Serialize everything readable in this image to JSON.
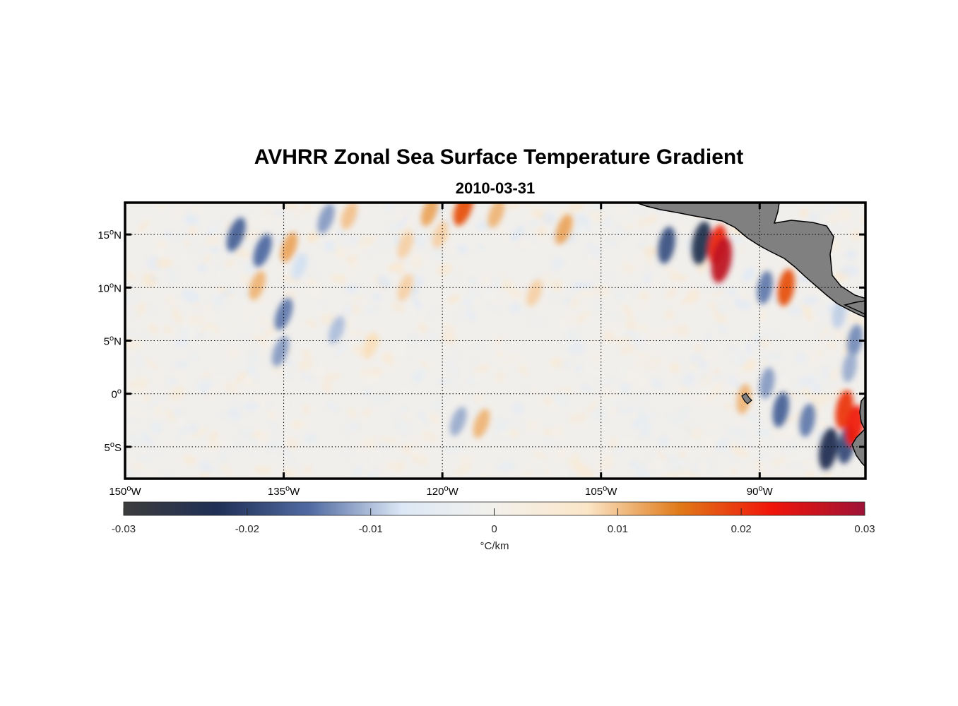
{
  "title": "AVHRR Zonal Sea Surface Temperature Gradient",
  "subtitle": "2010-03-31",
  "map": {
    "lon_range": [
      -150,
      -80
    ],
    "lat_range": [
      -8,
      18
    ],
    "lon_ticks": [
      {
        "value": -150,
        "num": "150",
        "hemi": "W"
      },
      {
        "value": -135,
        "num": "135",
        "hemi": "W"
      },
      {
        "value": -120,
        "num": "120",
        "hemi": "W"
      },
      {
        "value": -105,
        "num": "105",
        "hemi": "W"
      },
      {
        "value": -90,
        "num": "90",
        "hemi": "W"
      }
    ],
    "lat_ticks": [
      {
        "value": 15,
        "num": "15",
        "hemi": "N"
      },
      {
        "value": 10,
        "num": "10",
        "hemi": "N"
      },
      {
        "value": 5,
        "num": "5",
        "hemi": "N"
      },
      {
        "value": 0,
        "num": "0",
        "hemi": ""
      },
      {
        "value": -5,
        "num": "5",
        "hemi": "S"
      }
    ],
    "degree_symbol": "o",
    "grid": "dotted",
    "land_color": "#808080",
    "ocean_background": "#f1efec"
  },
  "colorbar": {
    "min": -0.03,
    "max": 0.03,
    "ticks": [
      "-0.03",
      "-0.02",
      "-0.01",
      "0",
      "0.01",
      "0.02",
      "0.03"
    ],
    "tick_values": [
      -0.03,
      -0.02,
      -0.01,
      0,
      0.01,
      0.02,
      0.03
    ],
    "unit_label": "°C/km",
    "colors": [
      "#3c3c3c",
      "#1f2f55",
      "#506aa1",
      "#dce8f6",
      "#f3f1ec",
      "#fbe6c8",
      "#e07a18",
      "#f0140a",
      "#9e1236"
    ]
  },
  "features": [
    {
      "lon": -139.5,
      "lat": 15.0,
      "value": -0.016
    },
    {
      "lon": -137.0,
      "lat": 13.5,
      "value": -0.015
    },
    {
      "lon": -134.5,
      "lat": 13.8,
      "value": 0.012
    },
    {
      "lon": -137.5,
      "lat": 10.2,
      "value": 0.011
    },
    {
      "lon": -135.0,
      "lat": 7.5,
      "value": -0.014
    },
    {
      "lon": -133.5,
      "lat": 12.0,
      "value": -0.008
    },
    {
      "lon": -135.3,
      "lat": 4.0,
      "value": -0.012
    },
    {
      "lon": -131.0,
      "lat": 16.5,
      "value": -0.012
    },
    {
      "lon": -128.8,
      "lat": 16.8,
      "value": 0.01
    },
    {
      "lon": -121.2,
      "lat": 17.2,
      "value": 0.012
    },
    {
      "lon": -118.0,
      "lat": 17.5,
      "value": 0.018
    },
    {
      "lon": -114.9,
      "lat": 17.0,
      "value": 0.011
    },
    {
      "lon": -108.5,
      "lat": 15.5,
      "value": 0.012
    },
    {
      "lon": -123.5,
      "lat": 14.0,
      "value": 0.009
    },
    {
      "lon": -120.2,
      "lat": 15.0,
      "value": 0.009
    },
    {
      "lon": -123.5,
      "lat": 10.0,
      "value": 0.009
    },
    {
      "lon": -111.3,
      "lat": 9.5,
      "value": 0.009
    },
    {
      "lon": -130.0,
      "lat": 6.0,
      "value": -0.01
    },
    {
      "lon": -126.8,
      "lat": 4.5,
      "value": 0.008
    },
    {
      "lon": -116.3,
      "lat": -2.8,
      "value": 0.011
    },
    {
      "lon": -118.5,
      "lat": -2.6,
      "value": -0.011
    },
    {
      "lon": -98.8,
      "lat": 14.0,
      "value": -0.018
    },
    {
      "lon": -95.5,
      "lat": 14.2,
      "value": -0.024
    },
    {
      "lon": -94.0,
      "lat": 14.0,
      "value": 0.021
    },
    {
      "lon": -93.6,
      "lat": 12.6,
      "value": 0.027
    },
    {
      "lon": -89.5,
      "lat": 10.0,
      "value": -0.014
    },
    {
      "lon": -87.5,
      "lat": 10.0,
      "value": 0.018
    },
    {
      "lon": -89.3,
      "lat": 1.0,
      "value": -0.012
    },
    {
      "lon": -91.5,
      "lat": -0.5,
      "value": 0.011
    },
    {
      "lon": -88.0,
      "lat": -1.5,
      "value": -0.016
    },
    {
      "lon": -85.5,
      "lat": -2.5,
      "value": -0.014
    },
    {
      "lon": -83.5,
      "lat": -5.2,
      "value": -0.023
    },
    {
      "lon": -81.8,
      "lat": -4.8,
      "value": -0.019
    },
    {
      "lon": -82.0,
      "lat": -1.5,
      "value": 0.02
    },
    {
      "lon": -81.0,
      "lat": -3.0,
      "value": 0.022
    },
    {
      "lon": -81.0,
      "lat": 5.0,
      "value": -0.013
    },
    {
      "lon": -81.5,
      "lat": 2.5,
      "value": -0.011
    },
    {
      "lon": -82.5,
      "lat": 7.5,
      "value": -0.009
    }
  ]
}
